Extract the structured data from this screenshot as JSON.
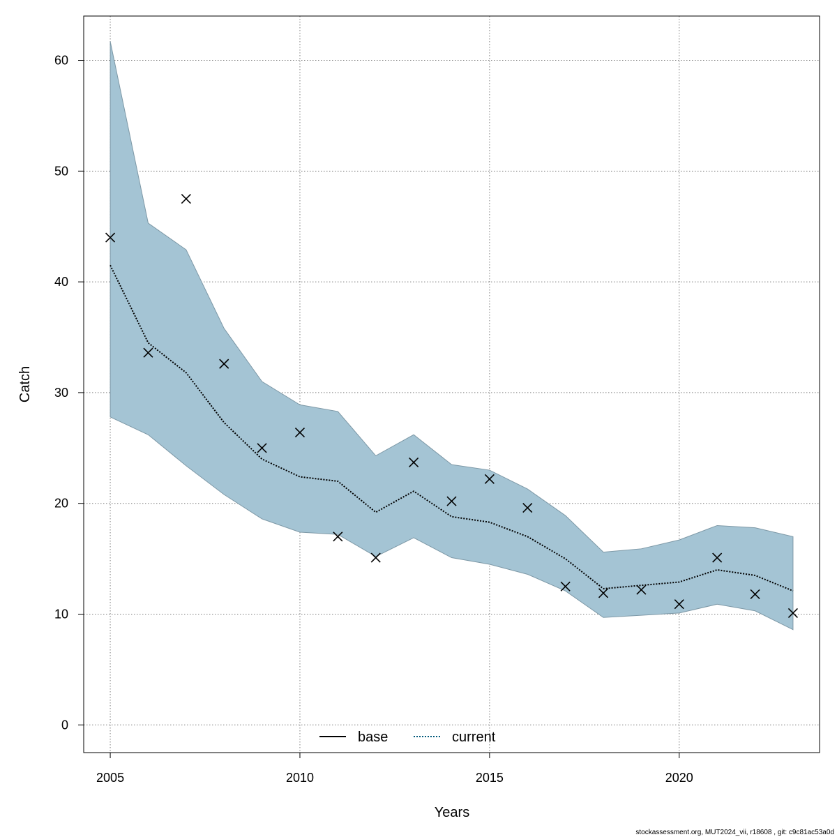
{
  "chart_data": {
    "type": "line",
    "xlabel": "Years",
    "ylabel": "Catch",
    "xlim": [
      2004.3,
      2023.7
    ],
    "ylim": [
      -2.5,
      64
    ],
    "x_ticks": [
      2005,
      2010,
      2015,
      2020
    ],
    "y_ticks": [
      0,
      10,
      20,
      30,
      40,
      50,
      60
    ],
    "grid": true,
    "legend_position": "bottom-center",
    "legend": [
      {
        "name": "base",
        "style": "solid",
        "color": "#000000"
      },
      {
        "name": "current",
        "style": "dotted",
        "color": "#00587a"
      }
    ],
    "x": [
      2005,
      2006,
      2007,
      2008,
      2009,
      2010,
      2011,
      2012,
      2013,
      2014,
      2015,
      2016,
      2017,
      2018,
      2019,
      2020,
      2021,
      2022,
      2023
    ],
    "series": [
      {
        "name": "current",
        "style": "dotted",
        "color": "#000000",
        "values": [
          41.5,
          34.5,
          31.8,
          27.3,
          24.0,
          22.4,
          22.0,
          19.2,
          21.1,
          18.8,
          18.3,
          17.0,
          15.0,
          12.3,
          12.6,
          12.9,
          14.0,
          13.5,
          12.1
        ]
      },
      {
        "name": "confidence band",
        "type": "band",
        "color": "#a4c4d4",
        "lower": [
          27.8,
          26.2,
          23.4,
          20.8,
          18.6,
          17.4,
          17.2,
          15.2,
          16.9,
          15.1,
          14.5,
          13.6,
          12.1,
          9.7,
          9.9,
          10.1,
          10.9,
          10.3,
          8.6
        ],
        "upper": [
          61.7,
          45.3,
          42.9,
          35.8,
          31.0,
          28.9,
          28.3,
          24.3,
          26.2,
          23.5,
          23.0,
          21.3,
          18.9,
          15.6,
          15.9,
          16.7,
          18.0,
          17.8,
          17.0
        ]
      },
      {
        "name": "observed",
        "type": "scatter",
        "marker": "x",
        "color": "#000000",
        "values": [
          44.0,
          33.6,
          47.5,
          32.6,
          25.0,
          26.4,
          17.0,
          15.1,
          23.7,
          20.2,
          22.2,
          19.6,
          12.5,
          11.9,
          12.2,
          10.9,
          15.1,
          11.8,
          10.1
        ]
      }
    ]
  },
  "footer": "stockassessment.org, MUT2024_vii, r18608 , git: c9c81ac53a0d"
}
